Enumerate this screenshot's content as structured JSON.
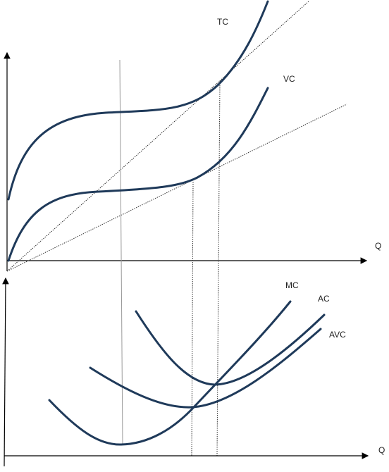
{
  "labels": {
    "tc": "TC",
    "vc": "VC",
    "q_top": "Q",
    "mc": "MC",
    "ac": "AC",
    "avc": "AVC",
    "q_bottom": "Q"
  }
}
